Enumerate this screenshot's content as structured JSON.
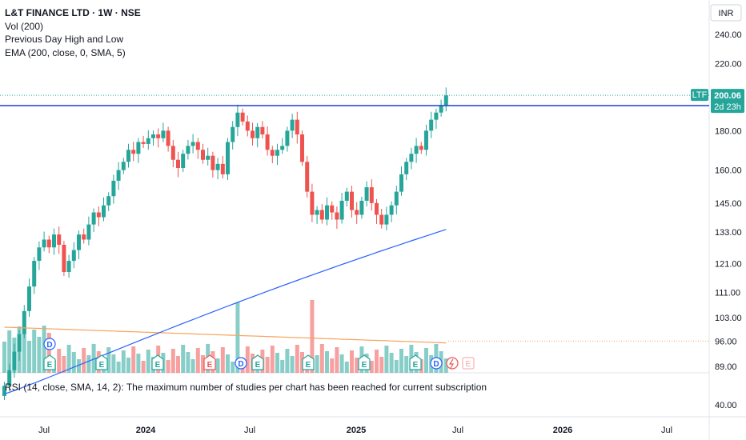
{
  "legend": {
    "title": "L&T FINANCE LTD · 1W · NSE",
    "vol": "Vol (200)",
    "pdhl": "Previous Day High and Low",
    "ema": "EMA (200, close, 0, SMA, 5)"
  },
  "rsi_message": "RSI (14, close, SMA, 14, 2): The maximum number of studies per chart has been reached for current subscription",
  "currency": "INR",
  "price_tag": {
    "symbol": "LTF",
    "price": "200.06",
    "countdown": "2d 23h"
  },
  "colors": {
    "up": "#26a69a",
    "down": "#ef5350",
    "level": "#1e3fd0",
    "ema": "#2962ff",
    "vol_ma": "#f7a35c"
  },
  "chart_data": {
    "type": "candlestick",
    "price_ticks": [
      "240.00",
      "220.00",
      "200.00",
      "180.00",
      "160.00",
      "145.00",
      "133.00",
      "121.00",
      "111.00",
      "103.00",
      "96.00",
      "89.00"
    ],
    "rsi_ticks": [
      "40.00"
    ],
    "time_ticks": [
      {
        "label": "Jul",
        "bold": false
      },
      {
        "label": "2024",
        "bold": true
      },
      {
        "label": "Jul",
        "bold": false
      },
      {
        "label": "2025",
        "bold": true
      },
      {
        "label": "Jul",
        "bold": false
      },
      {
        "label": "2026",
        "bold": true
      },
      {
        "label": "Jul",
        "bold": false
      }
    ],
    "log_scale": true,
    "level_line": 194,
    "last_close_line": 200.06,
    "closes": [
      84,
      88,
      93,
      98,
      105,
      113,
      122,
      127,
      130,
      127,
      132,
      128,
      118,
      122,
      126,
      132,
      130,
      136,
      141,
      139,
      144,
      148,
      155,
      160,
      164,
      170,
      168,
      174,
      173,
      176,
      178,
      176,
      180,
      172,
      165,
      161,
      168,
      172,
      174,
      170,
      165,
      167,
      160,
      163,
      158,
      174,
      182,
      190,
      185,
      180,
      176,
      182,
      178,
      170,
      167,
      170,
      172,
      180,
      186,
      178,
      164,
      150,
      140,
      142,
      138,
      144,
      141,
      138,
      146,
      150,
      142,
      140,
      146,
      152,
      145,
      140,
      136,
      140,
      144,
      150,
      158,
      164,
      168,
      172,
      170,
      180,
      186,
      190,
      194,
      200
    ]
  }
}
